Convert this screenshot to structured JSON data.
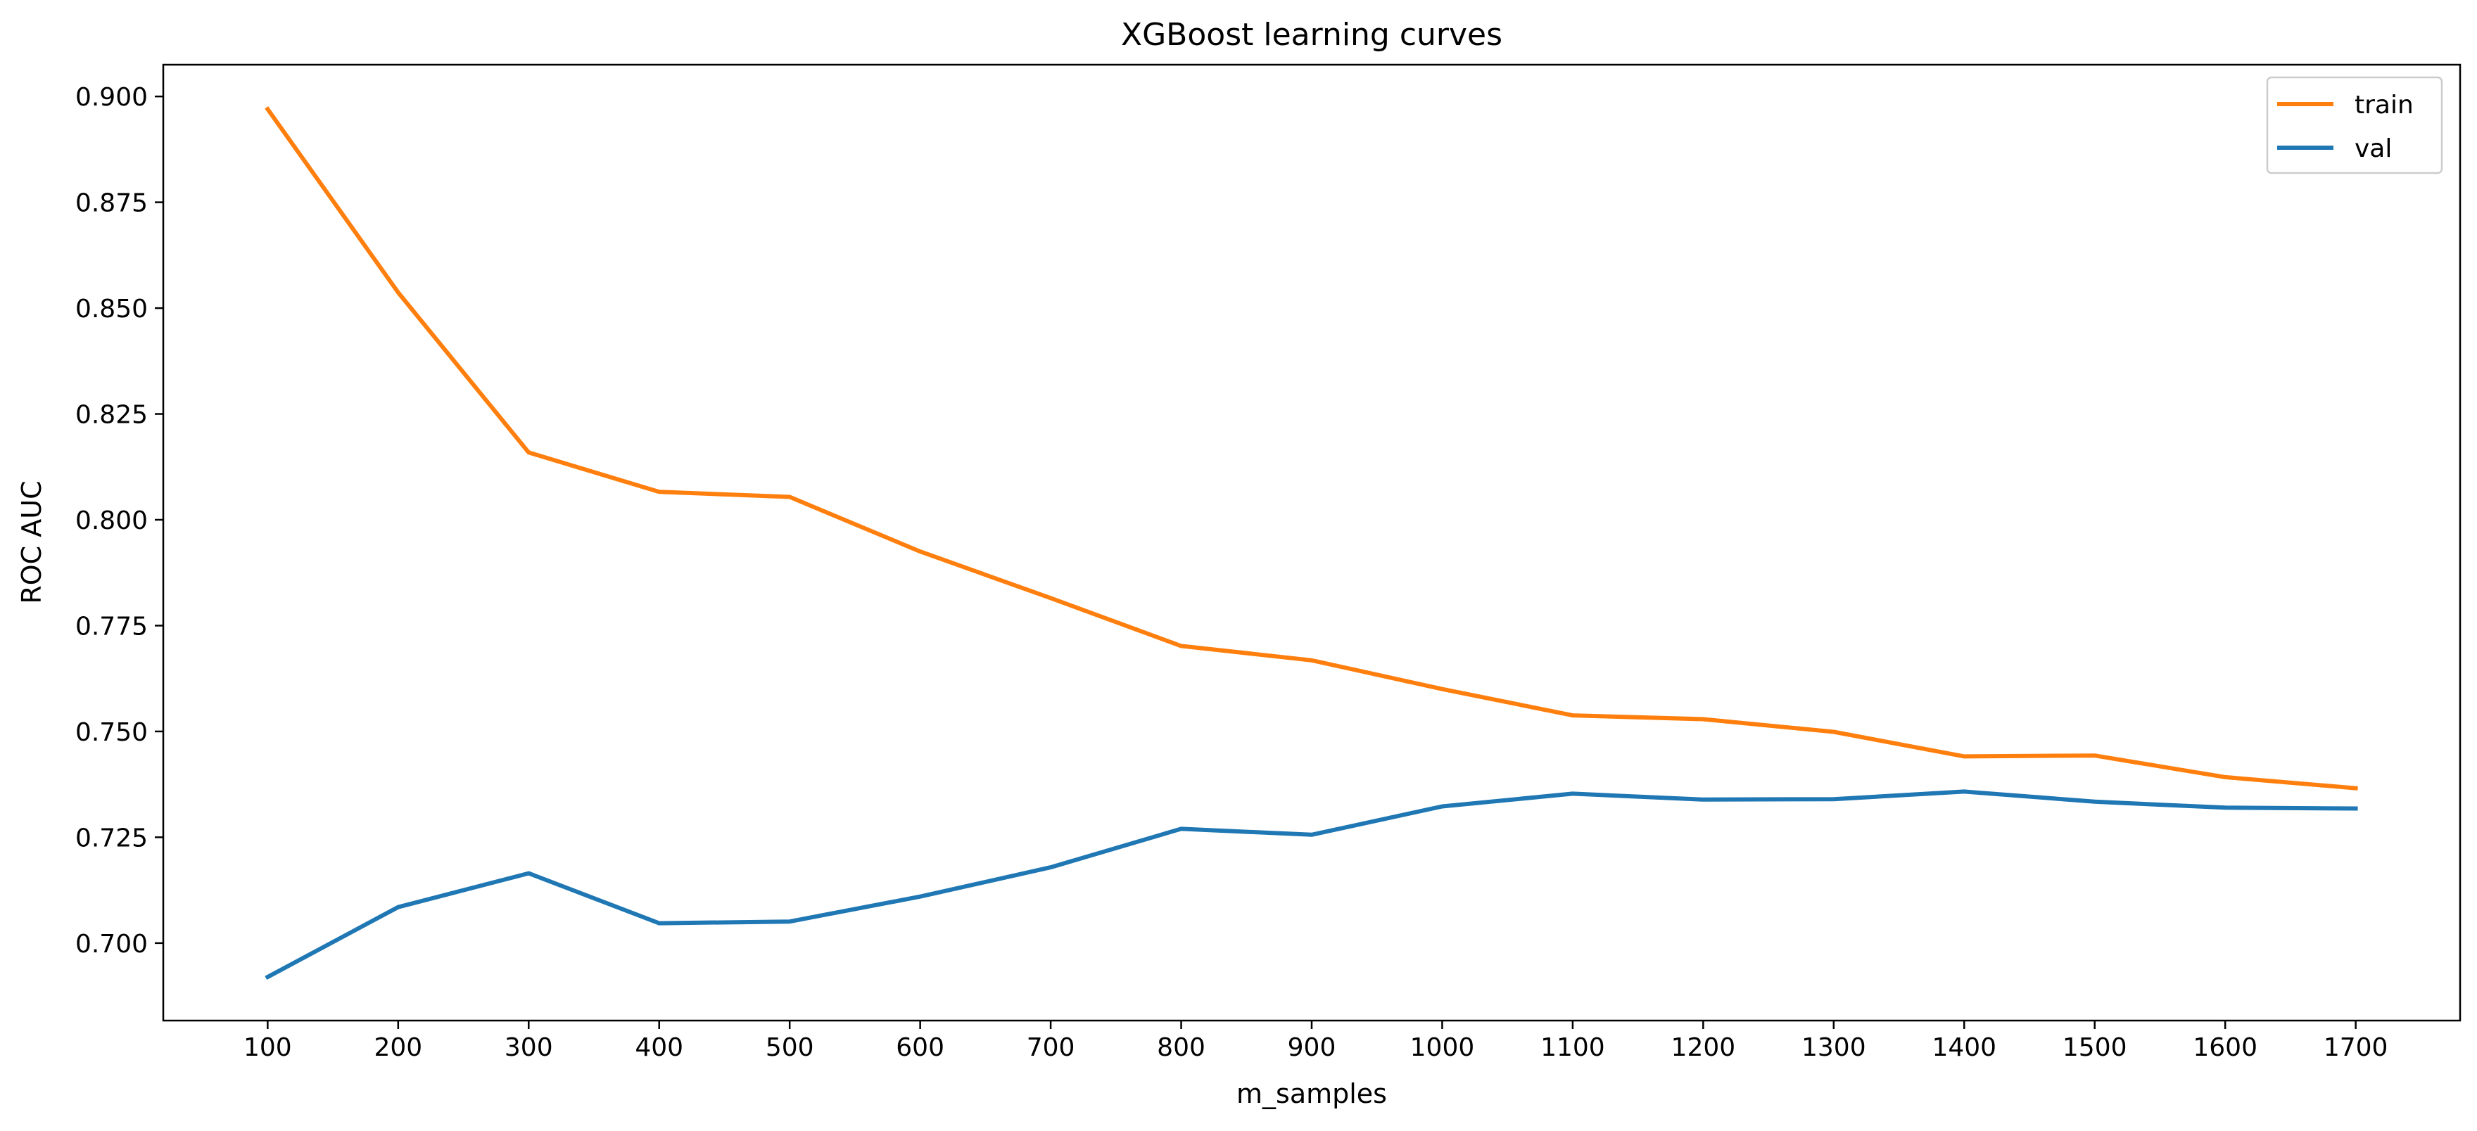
{
  "chart_data": {
    "type": "line",
    "title": "XGBoost learning curves",
    "xlabel": "m_samples",
    "ylabel": "ROC AUC",
    "x": [
      100,
      200,
      300,
      400,
      500,
      600,
      700,
      800,
      900,
      1000,
      1100,
      1200,
      1300,
      1400,
      1500,
      1600,
      1700
    ],
    "xticks": [
      "100",
      "200",
      "300",
      "400",
      "500",
      "600",
      "700",
      "800",
      "900",
      "1000",
      "1100",
      "1200",
      "1300",
      "1400",
      "1500",
      "1600",
      "1700"
    ],
    "yticks": [
      "0.700",
      "0.725",
      "0.750",
      "0.775",
      "0.800",
      "0.825",
      "0.850",
      "0.875",
      "0.900"
    ],
    "xlim": [
      20,
      1780
    ],
    "ylim": [
      0.6817,
      0.9075
    ],
    "grid": false,
    "legend_position": "top-right",
    "series": [
      {
        "name": "train",
        "color": "#ff7f0e",
        "values": [
          0.897,
          0.8537,
          0.8159,
          0.8066,
          0.8054,
          0.7925,
          0.7815,
          0.7702,
          0.7668,
          0.76,
          0.7538,
          0.7529,
          0.7499,
          0.7441,
          0.7443,
          0.7392,
          0.7366
        ]
      },
      {
        "name": "val",
        "color": "#1f77b4",
        "values": [
          0.692,
          0.7085,
          0.7165,
          0.7047,
          0.7051,
          0.711,
          0.7179,
          0.727,
          0.7256,
          0.7323,
          0.7353,
          0.7339,
          0.734,
          0.7358,
          0.7334,
          0.732,
          0.7318
        ]
      }
    ]
  }
}
